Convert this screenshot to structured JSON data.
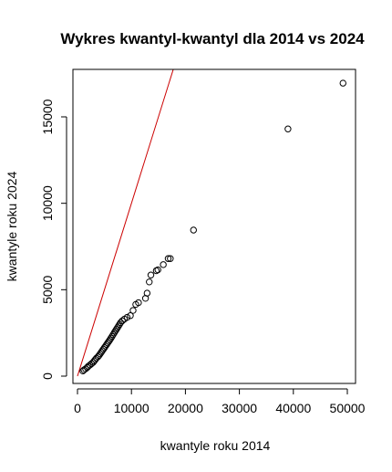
{
  "chart_data": {
    "type": "scatter",
    "title": "Wykres kwantyl-kwantyl dla 2014 vs 2024",
    "xlabel": "kwantyle roku 2014",
    "ylabel": "kwantyle roku 2024",
    "xlim": [
      0,
      50000
    ],
    "ylim": [
      0,
      17000
    ],
    "x_ticks": [
      0,
      10000,
      20000,
      30000,
      40000,
      50000
    ],
    "y_ticks": [
      0,
      5000,
      10000,
      15000
    ],
    "x_tick_labels": [
      "0",
      "10000",
      "20000",
      "30000",
      "40000",
      "50000"
    ],
    "y_tick_labels": [
      "0",
      "5000",
      "10000",
      "15000"
    ],
    "grid": false,
    "legend": "none",
    "marker": "open-circle",
    "reference_line": {
      "type": "y=x",
      "color": "#cc0000"
    },
    "points": [
      [
        1000,
        300
      ],
      [
        1200,
        360
      ],
      [
        1500,
        420
      ],
      [
        1800,
        500
      ],
      [
        2000,
        570
      ],
      [
        2300,
        640
      ],
      [
        2600,
        720
      ],
      [
        2900,
        800
      ],
      [
        3100,
        880
      ],
      [
        3300,
        960
      ],
      [
        3500,
        1040
      ],
      [
        3800,
        1120
      ],
      [
        4000,
        1200
      ],
      [
        4200,
        1290
      ],
      [
        4400,
        1380
      ],
      [
        4600,
        1470
      ],
      [
        4800,
        1560
      ],
      [
        5000,
        1650
      ],
      [
        5200,
        1740
      ],
      [
        5400,
        1830
      ],
      [
        5600,
        1920
      ],
      [
        5800,
        2010
      ],
      [
        6000,
        2100
      ],
      [
        6200,
        2200
      ],
      [
        6400,
        2300
      ],
      [
        6600,
        2400
      ],
      [
        6800,
        2500
      ],
      [
        7000,
        2600
      ],
      [
        7200,
        2700
      ],
      [
        7400,
        2800
      ],
      [
        7600,
        2900
      ],
      [
        7800,
        3000
      ],
      [
        8000,
        3100
      ],
      [
        8300,
        3200
      ],
      [
        8700,
        3300
      ],
      [
        9200,
        3400
      ],
      [
        9800,
        3500
      ],
      [
        10300,
        3800
      ],
      [
        10800,
        4150
      ],
      [
        11300,
        4250
      ],
      [
        12600,
        4500
      ],
      [
        12900,
        4800
      ],
      [
        13300,
        5450
      ],
      [
        13600,
        5850
      ],
      [
        14600,
        6100
      ],
      [
        14900,
        6150
      ],
      [
        15900,
        6450
      ],
      [
        16800,
        6800
      ],
      [
        17200,
        6800
      ],
      [
        21500,
        8450
      ],
      [
        39000,
        14300
      ],
      [
        49200,
        16950
      ]
    ]
  }
}
